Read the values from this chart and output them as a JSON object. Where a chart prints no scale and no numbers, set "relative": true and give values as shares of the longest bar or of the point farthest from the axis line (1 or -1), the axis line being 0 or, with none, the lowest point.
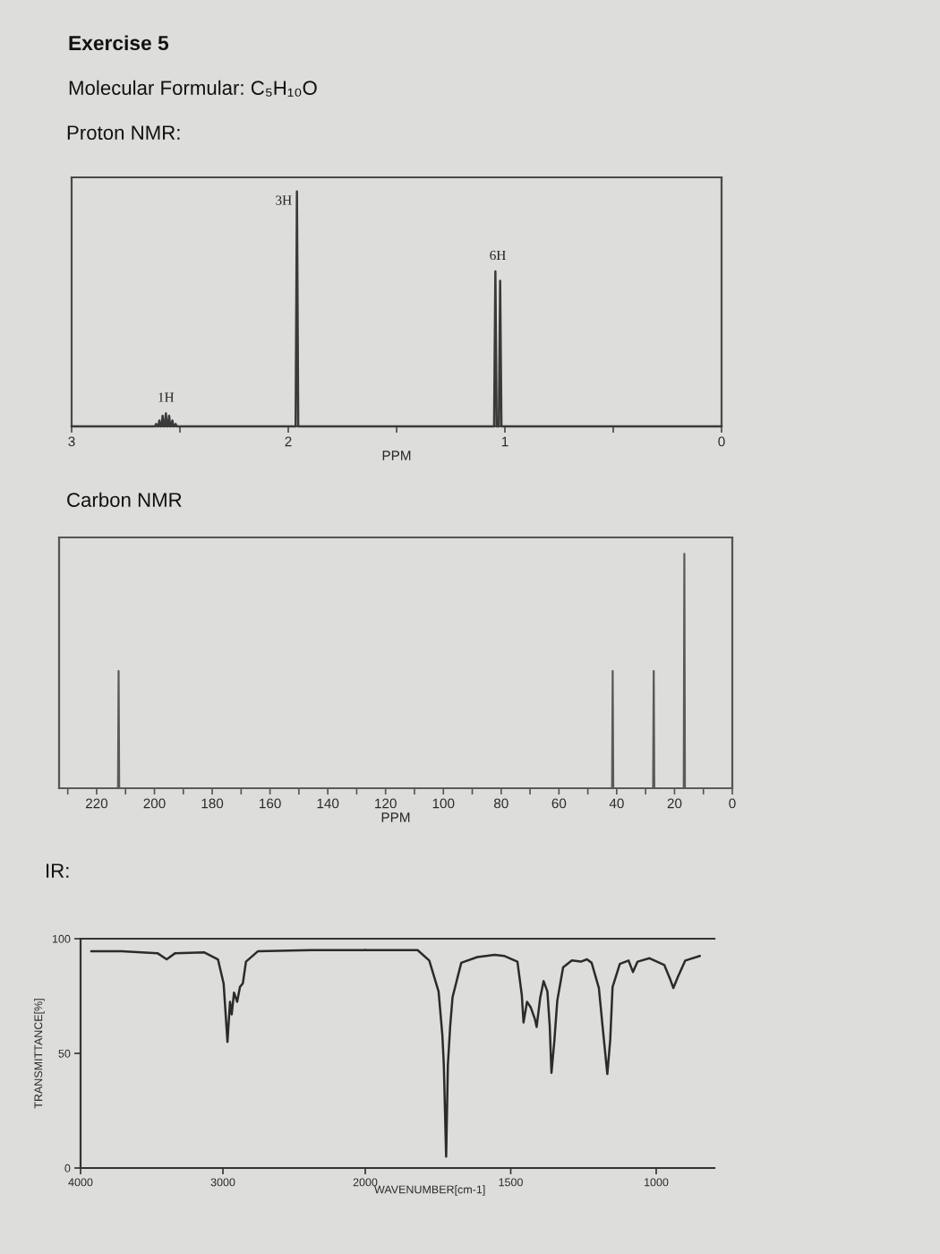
{
  "chart_data": [
    {
      "type": "line",
      "title": "Exercise 5",
      "subtitle": "Molecular Formular: C₅H₁₀O",
      "annotations": [
        "Proton NMR:",
        {
          "text": "1H",
          "x": 2.565,
          "y": 0.055
        },
        {
          "text": "3H",
          "x": 1.96,
          "y": 1
        },
        {
          "text": "6H",
          "x": 1.033,
          "y": 0.66
        }
      ],
      "xlabel": "PPM",
      "relative": true,
      "color": "#3a3a3a",
      "x": [
        3,
        2.615,
        2.61,
        2.605,
        2.6,
        2.595,
        2.59,
        2.585,
        2.58,
        2.575,
        2.57,
        2.565,
        2.56,
        2.555,
        2.55,
        2.545,
        2.54,
        2.535,
        2.53,
        2.525,
        2.52,
        2.515,
        1.966,
        1.96,
        1.954,
        1.05,
        1.044,
        1.038,
        1.028,
        1.022,
        1.016,
        0
      ],
      "values": [
        0,
        0,
        0.01,
        0,
        0,
        0.025,
        0,
        0,
        0.045,
        0,
        0,
        0.055,
        0,
        0,
        0.045,
        0,
        0,
        0.025,
        0,
        0,
        0.01,
        0,
        0,
        1,
        0,
        0,
        0.66,
        0,
        0,
        0.62,
        0,
        0
      ],
      "xlim": [
        3,
        0
      ],
      "xticks": [
        3,
        {
          "value": 2.5,
          "label": null
        },
        2,
        {
          "value": 1.5,
          "label": null
        },
        1,
        {
          "value": 0.5,
          "label": null
        },
        0
      ]
    },
    {
      "type": "line",
      "title": "Carbon NMR",
      "xlabel": "PPM",
      "relative": true,
      "color": "#5a5a5a",
      "x": [
        233,
        212.6,
        212.4,
        212.2,
        41.6,
        41.4,
        41.2,
        27.4,
        27.2,
        27.0,
        16.8,
        16.6,
        16.4,
        0
      ],
      "values": [
        0,
        0,
        0.5,
        0,
        0,
        0.5,
        0,
        0,
        0.5,
        0,
        0,
        1,
        0,
        0
      ],
      "xlim": [
        233,
        0
      ],
      "xticks": [
        {
          "value": 230,
          "label": null
        },
        220,
        {
          "value": 210,
          "label": null
        },
        200,
        {
          "value": 190,
          "label": null
        },
        180,
        {
          "value": 170,
          "label": null
        },
        160,
        {
          "value": 150,
          "label": null
        },
        140,
        {
          "value": 130,
          "label": null
        },
        120,
        {
          "value": 110,
          "label": null
        },
        100,
        {
          "value": 90,
          "label": null
        },
        80,
        {
          "value": 70,
          "label": null
        },
        60,
        {
          "value": 50,
          "label": null
        },
        40,
        {
          "value": 30,
          "label": null
        },
        20,
        {
          "value": 10,
          "label": null
        },
        0
      ]
    },
    {
      "type": "line",
      "title": "IR:",
      "ylabel": "TRANSMITTANCE[%]",
      "color": "#2b2b2b",
      "x": [
        3925,
        3710,
        3460,
        3395,
        3335,
        3130,
        3035,
        2995,
        2968,
        2950,
        2938,
        2922,
        2900,
        2880,
        2860,
        2838,
        2755,
        2380,
        2050,
        2000
      ],
      "values": [
        94.5,
        94.5,
        93.7,
        91,
        93.7,
        94,
        91,
        80.5,
        55,
        72.5,
        67,
        76.5,
        72.5,
        79,
        80.5,
        90,
        94.5,
        95,
        95,
        95
      ],
      "xlim": [
        4000,
        2000
      ],
      "xticks": [
        4000,
        3000,
        2000
      ],
      "ylim": [
        0,
        100
      ],
      "yticks": [
        0,
        50,
        100
      ]
    },
    {
      "type": "line",
      "xlabel": "WAVENUMBER[cm-1]",
      "color": "#2b2b2b",
      "tick_labels": "x",
      "x": [
        2000,
        1820,
        1780,
        1748,
        1735,
        1730,
        1722,
        1716,
        1708,
        1700,
        1670,
        1615,
        1555,
        1523,
        1477,
        1462,
        1456,
        1444,
        1431,
        1417,
        1411,
        1399,
        1387,
        1374,
        1366,
        1360,
        1350,
        1340,
        1320,
        1290,
        1259,
        1238,
        1222,
        1197,
        1183,
        1168,
        1158,
        1150,
        1125,
        1095,
        1080,
        1064,
        1023,
        972,
        951,
        941,
        925,
        900,
        850
      ],
      "values": [
        95,
        95,
        90.5,
        77,
        58,
        45,
        5,
        45,
        62,
        74.5,
        89.5,
        92,
        93,
        92.5,
        90,
        75.5,
        63.5,
        72.5,
        70,
        65,
        61.5,
        74,
        81.5,
        77,
        62,
        41.5,
        55.5,
        73,
        87.5,
        90.5,
        90,
        91,
        89.5,
        78.5,
        60,
        41,
        56,
        79,
        89,
        90.5,
        85.5,
        90,
        91.5,
        88.5,
        82,
        78.5,
        83.5,
        90.5,
        92.5
      ],
      "xlim": [
        2000,
        800
      ],
      "xticks": [
        1500,
        1000
      ],
      "ylim": [
        0,
        100
      ]
    }
  ]
}
